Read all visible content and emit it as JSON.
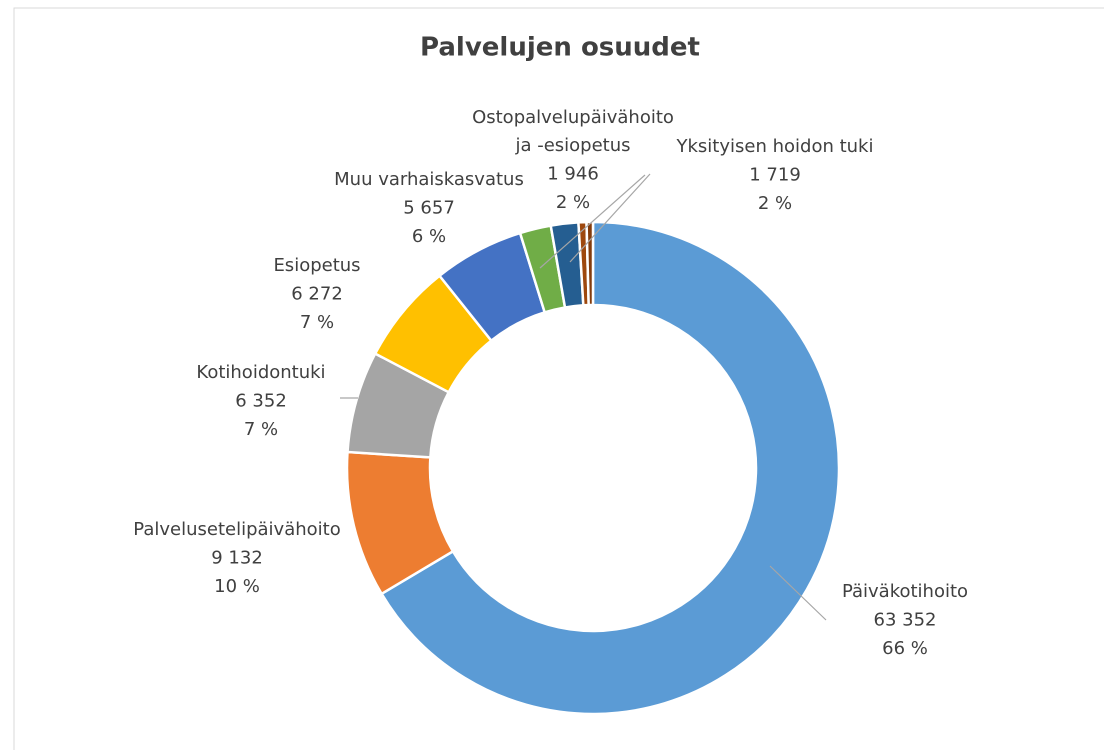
{
  "chart_data": {
    "type": "donut",
    "title": "Palvelujen osuudet",
    "categories": [
      "Päiväkotihoito",
      "Palvelusetelipäivähoito",
      "Kotihoidontuki",
      "Esiopetus",
      "Muu varhaiskasvatus",
      "Ostopalvelupäivähoito ja -esiopetus",
      "Yksityisen hoidon tuki",
      null,
      null
    ],
    "values": [
      63352,
      9132,
      6352,
      6272,
      5657,
      1946,
      1719,
      500,
      400
    ],
    "value_labels": [
      "63 352",
      "9 132",
      "6 352",
      "6 272",
      "5 657",
      "1 946",
      "1 719",
      null,
      null
    ],
    "percentages": [
      66,
      10,
      7,
      7,
      6,
      2,
      2,
      null,
      null
    ],
    "percentage_labels": [
      "66 %",
      "10 %",
      "7 %",
      "7 %",
      "6 %",
      "2 %",
      "2 %",
      null,
      null
    ],
    "colors": [
      "#5b9bd5",
      "#ed7d31",
      "#a5a5a5",
      "#ffc000",
      "#4472c4",
      "#70ad47",
      "#255e91",
      "#9e480e",
      "#843c0c"
    ]
  }
}
